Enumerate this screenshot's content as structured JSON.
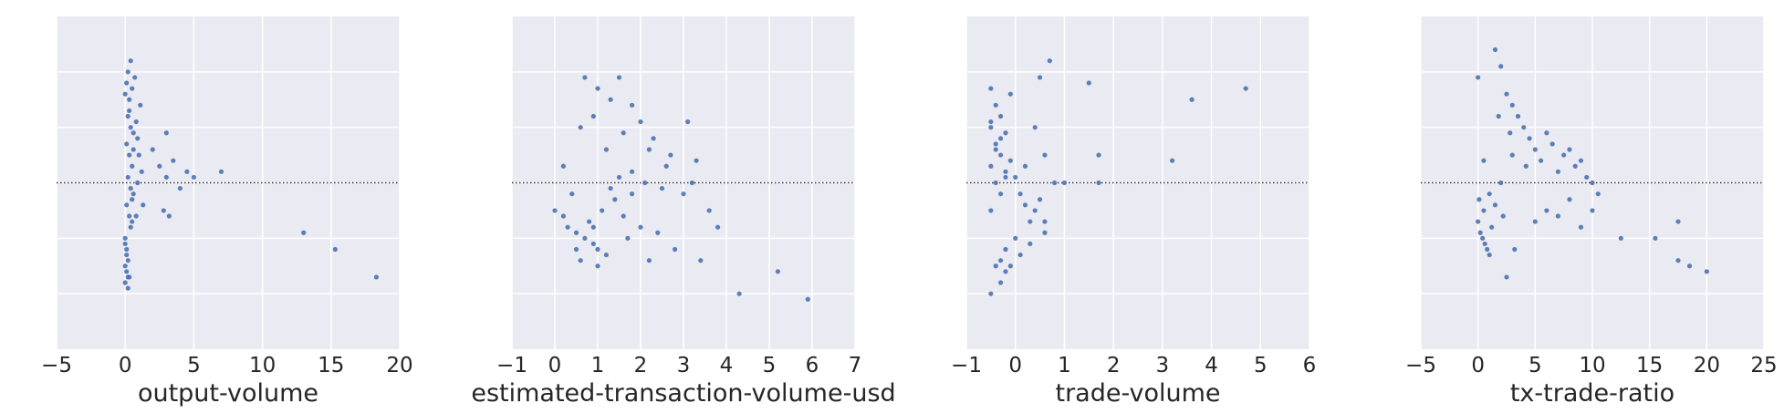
{
  "colors": {
    "panel_bg": "#eaeaf2",
    "grid": "#ffffff",
    "point": "#4c72b0",
    "zero_line": "#333333",
    "text": "#262626"
  },
  "chart_data": [
    {
      "type": "scatter",
      "title": "",
      "xlabel": "output-volume",
      "ylabel": "",
      "xlim": [
        -5,
        20
      ],
      "ylim": [
        -3,
        3
      ],
      "xticks": [
        -5,
        0,
        5,
        10,
        15,
        20
      ],
      "xtick_labels": [
        "−5",
        "0",
        "5",
        "10",
        "15",
        "20"
      ],
      "grid": true,
      "zero_line": "dotted",
      "points": [
        [
          0.1,
          1.8
        ],
        [
          0.3,
          1.5
        ],
        [
          0.5,
          1.7
        ],
        [
          0.2,
          1.2
        ],
        [
          0.4,
          1.0
        ],
        [
          0.6,
          0.9
        ],
        [
          0.1,
          0.7
        ],
        [
          0.3,
          0.5
        ],
        [
          0.5,
          0.3
        ],
        [
          0.2,
          0.1
        ],
        [
          0.4,
          -0.1
        ],
        [
          0.6,
          -0.2
        ],
        [
          0.1,
          -0.4
        ],
        [
          0.3,
          -0.6
        ],
        [
          0.5,
          -0.7
        ],
        [
          0.0,
          -1.1
        ],
        [
          0.1,
          -1.3
        ],
        [
          0.2,
          -1.4
        ],
        [
          0.0,
          -1.5
        ],
        [
          0.1,
          -1.6
        ],
        [
          0.3,
          -1.7
        ],
        [
          0.0,
          -1.8
        ],
        [
          0.2,
          -1.9
        ],
        [
          0.1,
          -1.2
        ],
        [
          0.0,
          -1.0
        ],
        [
          0.4,
          -0.8
        ],
        [
          0.8,
          1.1
        ],
        [
          0.9,
          0.8
        ],
        [
          1.0,
          0.5
        ],
        [
          1.2,
          0.2
        ],
        [
          1.1,
          1.4
        ],
        [
          0.7,
          1.9
        ],
        [
          0.9,
          0.0
        ],
        [
          1.3,
          -0.4
        ],
        [
          0.8,
          -0.6
        ],
        [
          2.0,
          0.6
        ],
        [
          2.5,
          0.3
        ],
        [
          3.0,
          0.1
        ],
        [
          3.5,
          0.4
        ],
        [
          4.5,
          0.2
        ],
        [
          5.0,
          0.1
        ],
        [
          2.8,
          -0.5
        ],
        [
          3.2,
          -0.6
        ],
        [
          4.0,
          -0.1
        ],
        [
          3.0,
          0.9
        ],
        [
          7.0,
          0.2
        ],
        [
          13.0,
          -0.9
        ],
        [
          15.3,
          -1.2
        ],
        [
          18.3,
          -1.7
        ],
        [
          0.2,
          2.0
        ],
        [
          0.4,
          2.2
        ],
        [
          0.0,
          1.6
        ],
        [
          0.3,
          1.3
        ],
        [
          0.6,
          0.6
        ],
        [
          0.5,
          -0.3
        ],
        [
          0.2,
          -1.7
        ]
      ]
    },
    {
      "type": "scatter",
      "title": "",
      "xlabel": "estimated-transaction-volume-usd",
      "ylabel": "",
      "xlim": [
        -1,
        7
      ],
      "ylim": [
        -3,
        3
      ],
      "xticks": [
        -1,
        0,
        1,
        2,
        3,
        4,
        5,
        6,
        7
      ],
      "xtick_labels": [
        "−1",
        "0",
        "1",
        "2",
        "3",
        "4",
        "5",
        "6",
        "7"
      ],
      "grid": true,
      "zero_line": "dotted",
      "points": [
        [
          0.7,
          1.9
        ],
        [
          1.0,
          1.7
        ],
        [
          1.5,
          1.9
        ],
        [
          1.3,
          1.5
        ],
        [
          1.8,
          1.4
        ],
        [
          0.9,
          1.2
        ],
        [
          2.0,
          1.1
        ],
        [
          1.6,
          0.9
        ],
        [
          2.3,
          0.8
        ],
        [
          1.2,
          0.6
        ],
        [
          2.7,
          0.5
        ],
        [
          3.1,
          1.1
        ],
        [
          3.3,
          0.4
        ],
        [
          1.8,
          0.2
        ],
        [
          2.1,
          0.0
        ],
        [
          2.5,
          -0.1
        ],
        [
          3.0,
          -0.2
        ],
        [
          3.6,
          -0.5
        ],
        [
          3.8,
          -0.8
        ],
        [
          0.2,
          0.3
        ],
        [
          0.4,
          -0.2
        ],
        [
          0.0,
          -0.5
        ],
        [
          0.2,
          -0.6
        ],
        [
          0.3,
          -0.8
        ],
        [
          0.5,
          -0.9
        ],
        [
          0.7,
          -1.0
        ],
        [
          0.9,
          -1.1
        ],
        [
          1.0,
          -1.2
        ],
        [
          1.2,
          -1.3
        ],
        [
          0.6,
          -1.4
        ],
        [
          0.8,
          -0.7
        ],
        [
          1.1,
          -0.5
        ],
        [
          1.4,
          -0.3
        ],
        [
          1.6,
          -0.6
        ],
        [
          2.0,
          -0.8
        ],
        [
          2.4,
          -0.9
        ],
        [
          2.8,
          -1.2
        ],
        [
          3.4,
          -1.4
        ],
        [
          2.2,
          -1.4
        ],
        [
          1.0,
          -1.5
        ],
        [
          1.8,
          -0.2
        ],
        [
          2.6,
          0.3
        ],
        [
          4.3,
          -2.0
        ],
        [
          5.2,
          -1.6
        ],
        [
          5.9,
          -2.1
        ],
        [
          1.5,
          0.1
        ],
        [
          0.6,
          1.0
        ],
        [
          2.2,
          0.6
        ],
        [
          3.2,
          0.0
        ],
        [
          1.3,
          -0.1
        ],
        [
          0.5,
          -1.2
        ],
        [
          0.9,
          -0.8
        ],
        [
          1.7,
          -1.0
        ]
      ]
    },
    {
      "type": "scatter",
      "title": "",
      "xlabel": "trade-volume",
      "ylabel": "",
      "xlim": [
        -1,
        6
      ],
      "ylim": [
        -3,
        3
      ],
      "xticks": [
        -1,
        0,
        1,
        2,
        3,
        4,
        5,
        6
      ],
      "xtick_labels": [
        "−1",
        "0",
        "1",
        "2",
        "3",
        "4",
        "5",
        "6"
      ],
      "grid": true,
      "zero_line": "dotted",
      "points": [
        [
          -0.5,
          1.7
        ],
        [
          -0.4,
          1.4
        ],
        [
          -0.3,
          1.2
        ],
        [
          -0.5,
          1.0
        ],
        [
          -0.2,
          0.9
        ],
        [
          -0.4,
          0.7
        ],
        [
          -0.3,
          0.5
        ],
        [
          -0.5,
          0.3
        ],
        [
          -0.2,
          0.2
        ],
        [
          -0.4,
          0.0
        ],
        [
          -0.3,
          -0.2
        ],
        [
          -0.1,
          1.6
        ],
        [
          -0.5,
          -0.5
        ],
        [
          -0.4,
          0.6
        ],
        [
          -0.1,
          0.4
        ],
        [
          0.0,
          0.1
        ],
        [
          0.1,
          -0.2
        ],
        [
          0.2,
          -0.4
        ],
        [
          0.3,
          -0.7
        ],
        [
          0.4,
          -0.5
        ],
        [
          0.6,
          -0.9
        ],
        [
          0.0,
          -1.0
        ],
        [
          -0.2,
          -1.2
        ],
        [
          -0.3,
          -1.4
        ],
        [
          -0.1,
          -1.5
        ],
        [
          -0.2,
          -1.6
        ],
        [
          0.1,
          -1.3
        ],
        [
          0.3,
          -1.1
        ],
        [
          -0.4,
          -1.5
        ],
        [
          -0.3,
          -1.8
        ],
        [
          -0.5,
          -2.0
        ],
        [
          0.5,
          -0.3
        ],
        [
          0.8,
          0.0
        ],
        [
          1.0,
          0.0
        ],
        [
          0.6,
          0.5
        ],
        [
          0.4,
          1.0
        ],
        [
          0.7,
          2.2
        ],
        [
          0.5,
          1.9
        ],
        [
          1.5,
          1.8
        ],
        [
          1.7,
          0.5
        ],
        [
          1.7,
          0.0
        ],
        [
          3.2,
          0.4
        ],
        [
          3.6,
          1.5
        ],
        [
          4.7,
          1.7
        ],
        [
          -0.5,
          1.1
        ],
        [
          -0.2,
          0.1
        ],
        [
          0.2,
          0.3
        ],
        [
          0.6,
          -0.7
        ],
        [
          -0.3,
          0.8
        ]
      ]
    },
    {
      "type": "scatter",
      "title": "",
      "xlabel": "tx-trade-ratio",
      "ylabel": "",
      "xlim": [
        -5,
        25
      ],
      "ylim": [
        -3,
        3
      ],
      "xticks": [
        -5,
        0,
        5,
        10,
        15,
        20,
        25
      ],
      "xtick_labels": [
        "−5",
        "0",
        "5",
        "10",
        "15",
        "20",
        "25"
      ],
      "grid": true,
      "zero_line": "dotted",
      "points": [
        [
          1.5,
          2.4
        ],
        [
          0.0,
          1.9
        ],
        [
          2.0,
          2.1
        ],
        [
          2.5,
          1.6
        ],
        [
          3.0,
          1.4
        ],
        [
          3.5,
          1.2
        ],
        [
          4.0,
          1.0
        ],
        [
          4.5,
          0.8
        ],
        [
          5.0,
          0.6
        ],
        [
          5.5,
          0.4
        ],
        [
          6.0,
          0.9
        ],
        [
          6.5,
          0.7
        ],
        [
          7.0,
          0.2
        ],
        [
          7.5,
          0.5
        ],
        [
          8.0,
          0.6
        ],
        [
          8.5,
          0.3
        ],
        [
          9.0,
          0.4
        ],
        [
          9.5,
          0.1
        ],
        [
          10.0,
          0.0
        ],
        [
          10.5,
          -0.2
        ],
        [
          3.0,
          0.5
        ],
        [
          2.0,
          0.0
        ],
        [
          1.0,
          -0.2
        ],
        [
          0.5,
          -0.5
        ],
        [
          0.0,
          -0.7
        ],
        [
          0.2,
          -0.9
        ],
        [
          0.4,
          -1.0
        ],
        [
          0.6,
          -1.1
        ],
        [
          0.8,
          -1.2
        ],
        [
          1.0,
          -1.3
        ],
        [
          1.2,
          -0.8
        ],
        [
          1.5,
          -0.4
        ],
        [
          2.2,
          -0.6
        ],
        [
          3.2,
          -1.2
        ],
        [
          2.5,
          -1.7
        ],
        [
          5.0,
          -0.7
        ],
        [
          6.0,
          -0.5
        ],
        [
          7.0,
          -0.6
        ],
        [
          8.0,
          -0.3
        ],
        [
          9.0,
          -0.8
        ],
        [
          10.0,
          -0.5
        ],
        [
          12.5,
          -1.0
        ],
        [
          15.5,
          -1.0
        ],
        [
          17.5,
          -0.7
        ],
        [
          17.5,
          -1.4
        ],
        [
          18.5,
          -1.5
        ],
        [
          20.0,
          -1.6
        ],
        [
          1.8,
          1.2
        ],
        [
          0.5,
          0.4
        ],
        [
          4.2,
          0.3
        ],
        [
          2.8,
          0.9
        ],
        [
          0.1,
          -0.3
        ]
      ]
    }
  ]
}
